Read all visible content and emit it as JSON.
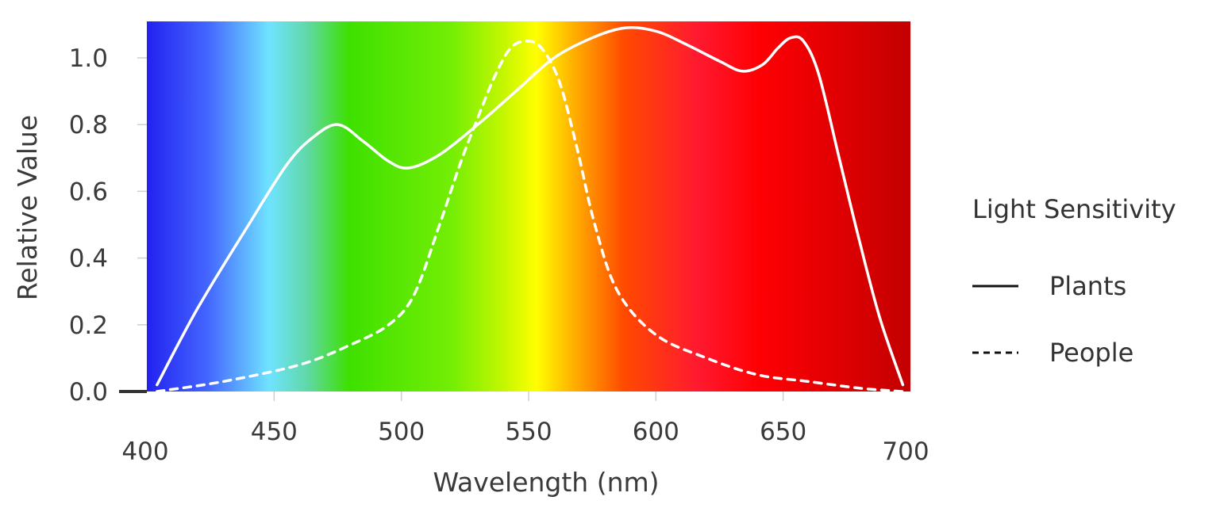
{
  "chart_data": {
    "type": "line",
    "title": "",
    "xlabel": "Wavelength",
    "xlabel_unit": "(nm)",
    "ylabel": "Relative Value",
    "xlim": [
      400,
      700
    ],
    "ylim": [
      0,
      1.1
    ],
    "x_ticks": [
      400,
      450,
      500,
      550,
      600,
      650,
      700
    ],
    "x_tick_labels": [
      "400",
      "450",
      "500",
      "550",
      "600",
      "650",
      "700"
    ],
    "y_ticks": [
      0.0,
      0.2,
      0.4,
      0.6,
      0.8,
      1.0
    ],
    "y_tick_labels": [
      "0.0",
      "0.2",
      "0.4",
      "0.6",
      "0.8",
      "1.0"
    ],
    "grid": false,
    "background": "visible light spectrum gradient",
    "legend": {
      "title": "Light Sensitivity",
      "position": "right"
    },
    "series": [
      {
        "name": "Plants",
        "line_style": "solid",
        "color": "#ffffff",
        "x": [
          404,
          420,
          440,
          455,
          465,
          475,
          485,
          495,
          503,
          515,
          530,
          545,
          560,
          575,
          588,
          600,
          612,
          625,
          634,
          642,
          648,
          653,
          658,
          664,
          672,
          680,
          688,
          697
        ],
        "y": [
          0.02,
          0.25,
          0.5,
          0.68,
          0.76,
          0.8,
          0.75,
          0.69,
          0.67,
          0.71,
          0.8,
          0.9,
          1.0,
          1.06,
          1.09,
          1.08,
          1.04,
          0.99,
          0.96,
          0.98,
          1.03,
          1.06,
          1.05,
          0.95,
          0.7,
          0.45,
          0.22,
          0.02
        ]
      },
      {
        "name": "People",
        "line_style": "dashed",
        "color": "#ffffff",
        "x": [
          404,
          430,
          460,
          480,
          495,
          505,
          515,
          523,
          530,
          537,
          543,
          549,
          555,
          562,
          569,
          576,
          585,
          600,
          620,
          640,
          660,
          680,
          697
        ],
        "y": [
          0.0,
          0.03,
          0.08,
          0.14,
          0.2,
          0.29,
          0.5,
          0.68,
          0.82,
          0.95,
          1.03,
          1.05,
          1.03,
          0.93,
          0.73,
          0.5,
          0.3,
          0.17,
          0.1,
          0.05,
          0.03,
          0.01,
          0.0
        ]
      }
    ],
    "colors": {
      "text": "#3a3a3a",
      "line": "#ffffff",
      "legend_line": "#111111",
      "axis_stub": "#333333"
    }
  }
}
